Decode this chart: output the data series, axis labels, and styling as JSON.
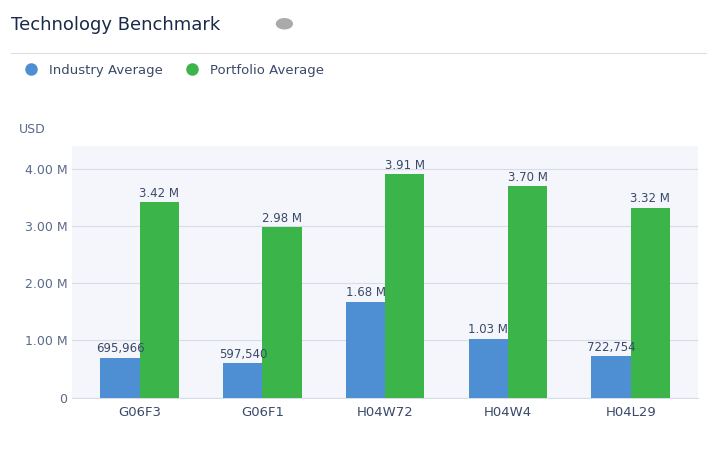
{
  "title": "Technology Benchmark",
  "categories": [
    "G06F3",
    "G06F1",
    "H04W72",
    "H04W4",
    "H04L29"
  ],
  "industry_avg": [
    695966,
    597540,
    1680000,
    1030000,
    722754
  ],
  "portfolio_avg": [
    3420000,
    2980000,
    3910000,
    3700000,
    3320000
  ],
  "industry_labels": [
    "695,966",
    "597,540",
    "1.68 M",
    "1.03 M",
    "722,754"
  ],
  "portfolio_labels": [
    "3.42 M",
    "2.98 M",
    "3.91 M",
    "3.70 M",
    "3.32 M"
  ],
  "industry_color": "#4E8FD4",
  "portfolio_color": "#3BB54A",
  "background_color": "#FFFFFF",
  "plot_bg_color": "#F4F6FB",
  "ylabel": "USD",
  "ylim": [
    0,
    4400000
  ],
  "yticks": [
    0,
    1000000,
    2000000,
    3000000,
    4000000
  ],
  "ytick_labels": [
    "0",
    "1.00 M",
    "2.00 M",
    "3.00 M",
    "4.00 M"
  ],
  "legend_industry": "Industry Average",
  "legend_portfolio": "Portfolio Average",
  "title_fontsize": 13,
  "axis_fontsize": 9,
  "label_fontsize": 8.5,
  "tick_color": "#5A6A8A",
  "label_color": "#3A4A6A",
  "grid_color": "#D8DCE8"
}
